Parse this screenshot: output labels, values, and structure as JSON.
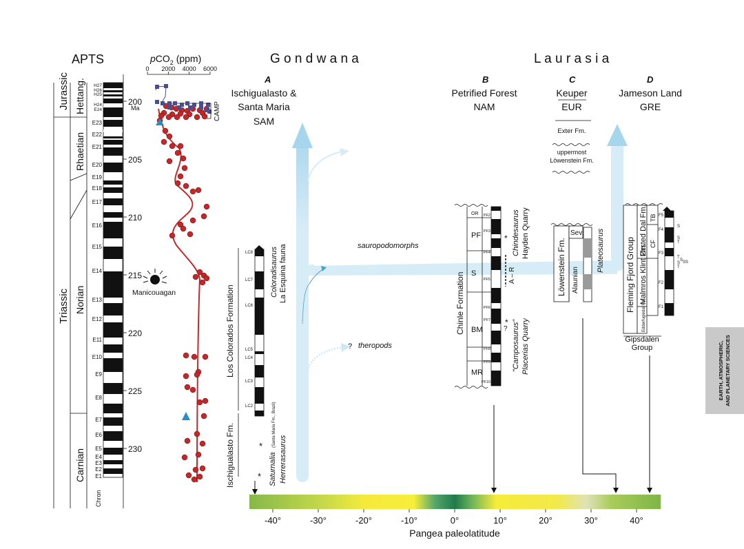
{
  "apts": {
    "title": "APTS",
    "periods": [
      "Jurassic",
      "Triassic"
    ],
    "stages": [
      "Hettang.",
      "Rhaetian",
      "Norian",
      "Carnian"
    ],
    "chron_label": "Chron",
    "age_unit": "Ma",
    "ages": [
      200,
      205,
      210,
      215,
      220,
      225,
      230
    ],
    "chrons": [
      "H27",
      "H26",
      "H25",
      "H24",
      "E24",
      "E23",
      "E22",
      "E21",
      "E20",
      "E19",
      "E18",
      "E17",
      "E16",
      "E15",
      "E14",
      "E13",
      "E12",
      "E11",
      "E10",
      "E9",
      "E8",
      "E7",
      "E6",
      "E5",
      "E4",
      "E3",
      "E2",
      "E1"
    ],
    "manicouagan": "Manicouagan"
  },
  "pco2": {
    "title_italic": "p",
    "title_main": "CO",
    "title_sub": "2",
    "title_unit": " (ppm)",
    "ticks": [
      0,
      2000,
      4000,
      6000
    ],
    "camp": "CAMP"
  },
  "regions": {
    "gondwana": "G o n d w a n a",
    "laurasia": "L a u r a s i a"
  },
  "sections": {
    "a": {
      "letter": "A",
      "line1": "Ischigualasto &",
      "line2": "Santa Maria",
      "line3": "SAM",
      "formation1": "Los Colorados Formation",
      "formation2": "Ischigualasto Fm.",
      "taxon1": "Coloradisaurus",
      "taxon1b": "La Esquina fauna",
      "taxon2": "Saturnalia",
      "taxon2b": "(Santa Maria Fm., Brazil)",
      "taxon3": "Herrerasaurus",
      "chrons": [
        "LC8",
        "LC7",
        "LC6",
        "LC5",
        "LC4",
        "LC3",
        "LC2"
      ]
    },
    "b": {
      "letter": "B",
      "line1": "Petrified Forest",
      "line2": "NAM",
      "formation": "Chinle Formation",
      "members": [
        "OR",
        "PF",
        "S",
        "BM",
        "MR"
      ],
      "chrons": [
        "PF2",
        "PF3",
        "PF4",
        "PF5",
        "PF6",
        "PF7",
        "PF8",
        "PF9",
        "PF10"
      ],
      "taxon1": "Chindesaurus",
      "taxon1b": "Hayden Quarry",
      "taxon2": "\"Camposaurus\"",
      "taxon2b": "Placerias Quarry",
      "ar": "A – R"
    },
    "c": {
      "letter": "C",
      "line1": "Keuper",
      "line2": "EUR",
      "exter": "Exter Fm.",
      "upper1": "uppermost",
      "upper2": "Löwenstein Fm.",
      "formation": "Löwenstein Fm.",
      "alaunian": "Alaunian",
      "sev": "Sev.",
      "taxon": "Plateosaurus"
    },
    "d": {
      "letter": "D",
      "line1": "Jameson Land",
      "line2": "GRE",
      "group": "Fleming Fjord Group",
      "orsted": "Ørsted Dal Fm.",
      "malmros": "Malmros Klint Fm.",
      "edder": "Edderfugledal Fm.",
      "tb": "TB",
      "cf": "CF",
      "gipsdalen1": "Gipsdalen",
      "gipsdalen2": "Group",
      "chrons": [
        "F5",
        "F4",
        "F3",
        "F2",
        "F1"
      ]
    }
  },
  "annotations": {
    "sauropodomorphs": "sauropodomorphs",
    "theropods": "theropods",
    "question": "?"
  },
  "latitude": {
    "title": "Pangea paleolatitude",
    "ticks": [
      "-40°",
      "-30°",
      "-20°",
      "-10°",
      "0°",
      "10°",
      "20°",
      "30°",
      "40°"
    ],
    "tick_values": [
      -40,
      -30,
      -20,
      -10,
      0,
      10,
      20,
      30,
      40
    ]
  },
  "journal_tab": {
    "line1": "EARTH, ATMOSPHERIC,",
    "line2": "AND PLANETARY SCIENCES"
  },
  "colors": {
    "curve": "#c62828",
    "dot": "#c0282a",
    "camp_square": "#4a4e8c",
    "arrow": "#cfe8f5",
    "triangle": "#2a8cc8"
  }
}
